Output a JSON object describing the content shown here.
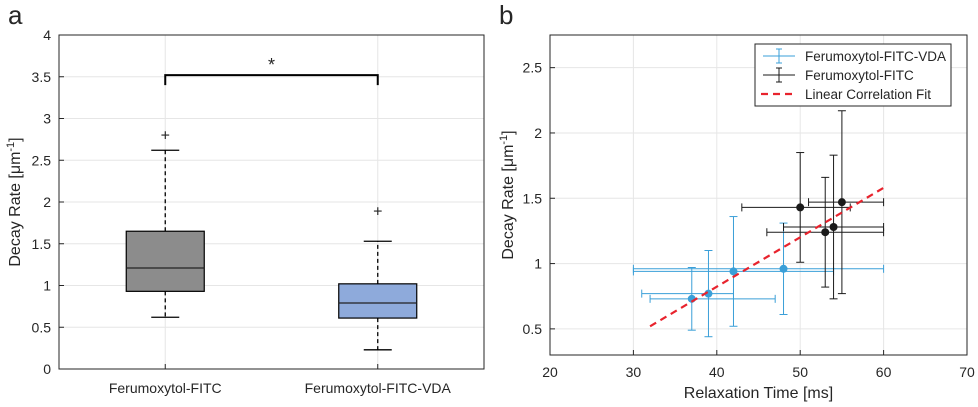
{
  "chart_data": [
    {
      "panel": "a",
      "type": "box",
      "ylabel_main": "Decay Rate [μm",
      "ylabel_sup": "-1",
      "ylabel_end": "]",
      "ylim": [
        0,
        4
      ],
      "yticks": [
        0,
        0.5,
        1,
        1.5,
        2,
        2.5,
        3,
        3.5,
        4
      ],
      "ytick_labels": [
        "0",
        "0.5",
        "1",
        "1.5",
        "2",
        "2.5",
        "3",
        "3.5",
        "4"
      ],
      "categories": [
        "Ferumoxytol-FITC",
        "Ferumoxytol-FITC-VDA"
      ],
      "boxes": [
        {
          "category": "Ferumoxytol-FITC",
          "whisker_low": 0.62,
          "q1": 0.93,
          "median": 1.21,
          "q3": 1.65,
          "whisker_high": 2.62,
          "outliers": [
            2.81
          ],
          "color": "#8c8c8c"
        },
        {
          "category": "Ferumoxytol-FITC-VDA",
          "whisker_low": 0.23,
          "q1": 0.61,
          "median": 0.79,
          "q3": 1.02,
          "whisker_high": 1.53,
          "outliers": [
            1.9
          ],
          "color": "#8eaadb"
        }
      ],
      "significance": {
        "label": "*",
        "y": 3.52
      },
      "outlier_color": "#e8232d",
      "grid": true
    },
    {
      "panel": "b",
      "type": "scatter",
      "xlabel": "Relaxation Time [ms]",
      "ylabel_main": "Decay Rate [μm",
      "ylabel_sup": "-1",
      "ylabel_end": "]",
      "xlim": [
        20,
        70
      ],
      "ylim": [
        0.3,
        2.75
      ],
      "xticks": [
        20,
        30,
        40,
        50,
        60,
        70
      ],
      "xtick_labels": [
        "20",
        "30",
        "40",
        "50",
        "60",
        "70"
      ],
      "yticks": [
        0.5,
        1,
        1.5,
        2,
        2.5
      ],
      "ytick_labels": [
        "0.5",
        "1",
        "1.5",
        "2",
        "2.5"
      ],
      "legend_position": "top-right",
      "grid": true,
      "series": [
        {
          "name": "Ferumoxytol-FITC-VDA",
          "color": "#3a9fd8",
          "points": [
            {
              "x": 37,
              "y": 0.73,
              "xerr_low": 5,
              "xerr_high": 10,
              "yerr_low": 0.24,
              "yerr_high": 0.24
            },
            {
              "x": 39,
              "y": 0.77,
              "xerr_low": 8,
              "xerr_high": 3,
              "yerr_low": 0.33,
              "yerr_high": 0.33
            },
            {
              "x": 42,
              "y": 0.94,
              "xerr_low": 12,
              "xerr_high": 12,
              "yerr_low": 0.42,
              "yerr_high": 0.42
            },
            {
              "x": 48,
              "y": 0.96,
              "xerr_low": 18,
              "xerr_high": 12,
              "yerr_low": 0.35,
              "yerr_high": 0.35
            }
          ]
        },
        {
          "name": "Ferumoxytol-FITC",
          "color": "#1a1a1a",
          "points": [
            {
              "x": 50,
              "y": 1.43,
              "xerr_low": 7,
              "xerr_high": 6,
              "yerr_low": 0.42,
              "yerr_high": 0.42
            },
            {
              "x": 53,
              "y": 1.24,
              "xerr_low": 7,
              "xerr_high": 7,
              "yerr_low": 0.42,
              "yerr_high": 0.42
            },
            {
              "x": 54,
              "y": 1.28,
              "xerr_low": 6,
              "xerr_high": 6,
              "yerr_low": 0.55,
              "yerr_high": 0.55
            },
            {
              "x": 55,
              "y": 1.47,
              "xerr_low": 4,
              "xerr_high": 5,
              "yerr_low": 0.7,
              "yerr_high": 0.7
            }
          ]
        }
      ],
      "fit": {
        "name": "Linear Correlation Fit",
        "color": "#e8232d",
        "x": [
          32,
          60
        ],
        "y": [
          0.52,
          1.58
        ]
      }
    }
  ]
}
